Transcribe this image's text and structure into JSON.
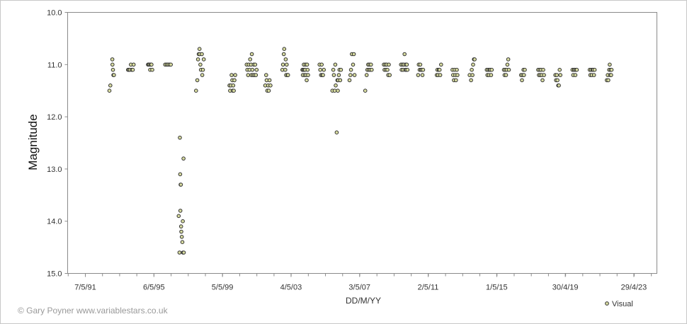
{
  "credit": "© Gary Poyner www.variablestars.co.uk",
  "chart_data": {
    "type": "scatter",
    "title": "",
    "xlabel": "DD/M/YY",
    "ylabel": "Magnitude",
    "y_inverted": true,
    "ylim": [
      10.0,
      15.0
    ],
    "yticks": [
      "10.0",
      "11.0",
      "12.0",
      "13.0",
      "14.0",
      "15.0"
    ],
    "xlim": [
      "1990-04-25",
      "2024-09-01"
    ],
    "xticks": [
      {
        "date": "1991-05-07",
        "label": "7/5/91"
      },
      {
        "date": "1995-05-06",
        "label": "6/5/95"
      },
      {
        "date": "1999-05-05",
        "label": "5/5/99"
      },
      {
        "date": "2003-05-04",
        "label": "4/5/03"
      },
      {
        "date": "2007-05-03",
        "label": "3/5/07"
      },
      {
        "date": "2011-05-02",
        "label": "2/5/11"
      },
      {
        "date": "2015-05-01",
        "label": "1/5/15"
      },
      {
        "date": "2019-04-30",
        "label": "30/4/19"
      },
      {
        "date": "2023-04-29",
        "label": "29/4/23"
      }
    ],
    "grid": false,
    "legend_position": "bottom-right",
    "series": [
      {
        "name": "Visual",
        "color": "#d8dca0",
        "edge_color": "#333333",
        "points": [
          [
            "1992-10-01",
            11.5
          ],
          [
            "1992-10-20",
            11.4
          ],
          [
            "1992-12-01",
            10.9
          ],
          [
            "1992-12-05",
            11.0
          ],
          [
            "1992-12-15",
            11.1
          ],
          [
            "1992-12-25",
            11.2
          ],
          [
            "1993-01-05",
            11.2
          ],
          [
            "1993-11-01",
            11.1
          ],
          [
            "1993-11-20",
            11.1
          ],
          [
            "1993-12-10",
            11.1
          ],
          [
            "1994-01-01",
            11.0
          ],
          [
            "1994-01-20",
            11.1
          ],
          [
            "1994-02-10",
            11.1
          ],
          [
            "1994-03-01",
            11.0
          ],
          [
            "1995-01-01",
            11.0
          ],
          [
            "1995-01-15",
            11.0
          ],
          [
            "1995-02-01",
            11.0
          ],
          [
            "1995-02-15",
            11.1
          ],
          [
            "1995-03-01",
            11.0
          ],
          [
            "1995-03-15",
            11.0
          ],
          [
            "1995-04-01",
            11.1
          ],
          [
            "1996-01-01",
            11.0
          ],
          [
            "1996-02-01",
            11.0
          ],
          [
            "1996-03-01",
            11.0
          ],
          [
            "1996-04-01",
            11.0
          ],
          [
            "1996-05-01",
            11.0
          ],
          [
            "1996-10-15",
            13.9
          ],
          [
            "1996-11-01",
            14.6
          ],
          [
            "1996-11-10",
            12.4
          ],
          [
            "1996-11-15",
            13.1
          ],
          [
            "1996-11-20",
            13.8
          ],
          [
            "1996-11-25",
            13.3
          ],
          [
            "1996-12-01",
            13.3
          ],
          [
            "1996-12-05",
            14.1
          ],
          [
            "1996-12-10",
            14.2
          ],
          [
            "1996-12-20",
            14.3
          ],
          [
            "1997-01-01",
            14.4
          ],
          [
            "1997-01-15",
            14.6
          ],
          [
            "1997-01-25",
            12.8
          ],
          [
            "1997-01-10",
            14.0
          ],
          [
            "1997-02-01",
            14.6
          ],
          [
            "1997-10-20",
            11.5
          ],
          [
            "1997-11-15",
            11.3
          ],
          [
            "1997-12-01",
            10.9
          ],
          [
            "1997-12-15",
            10.8
          ],
          [
            "1998-01-01",
            10.7
          ],
          [
            "1998-01-05",
            10.8
          ],
          [
            "1998-01-20",
            11.0
          ],
          [
            "1998-02-01",
            11.1
          ],
          [
            "1998-02-20",
            10.8
          ],
          [
            "1998-03-01",
            11.2
          ],
          [
            "1998-03-15",
            11.1
          ],
          [
            "1998-04-01",
            10.9
          ],
          [
            "1999-10-01",
            11.4
          ],
          [
            "1999-10-15",
            11.5
          ],
          [
            "1999-11-01",
            11.4
          ],
          [
            "1999-11-15",
            11.2
          ],
          [
            "1999-12-01",
            11.3
          ],
          [
            "1999-12-10",
            11.5
          ],
          [
            "1999-12-20",
            11.4
          ],
          [
            "2000-01-01",
            11.5
          ],
          [
            "2000-01-15",
            11.3
          ],
          [
            "2000-02-01",
            11.2
          ],
          [
            "2000-10-01",
            11.0
          ],
          [
            "2000-10-15",
            11.1
          ],
          [
            "2000-11-01",
            11.2
          ],
          [
            "2000-11-15",
            11.0
          ],
          [
            "2000-12-01",
            11.1
          ],
          [
            "2000-12-15",
            10.9
          ],
          [
            "2001-01-01",
            11.0
          ],
          [
            "2001-01-10",
            11.2
          ],
          [
            "2001-01-20",
            10.8
          ],
          [
            "2001-02-01",
            11.1
          ],
          [
            "2001-02-15",
            11.2
          ],
          [
            "2001-03-01",
            11.0
          ],
          [
            "2001-03-15",
            11.2
          ],
          [
            "2001-04-01",
            11.0
          ],
          [
            "2001-04-15",
            11.2
          ],
          [
            "2001-05-01",
            11.1
          ],
          [
            "2001-11-01",
            11.4
          ],
          [
            "2001-11-20",
            11.2
          ],
          [
            "2001-12-01",
            11.3
          ],
          [
            "2001-12-15",
            11.5
          ],
          [
            "2002-01-01",
            11.4
          ],
          [
            "2002-01-15",
            11.5
          ],
          [
            "2002-02-01",
            11.3
          ],
          [
            "2002-02-20",
            11.4
          ],
          [
            "2002-11-01",
            11.1
          ],
          [
            "2002-11-15",
            11.0
          ],
          [
            "2002-12-01",
            10.8
          ],
          [
            "2002-12-10",
            10.7
          ],
          [
            "2003-01-01",
            11.1
          ],
          [
            "2003-01-10",
            10.9
          ],
          [
            "2003-01-20",
            11.2
          ],
          [
            "2003-02-01",
            11.0
          ],
          [
            "2003-02-20",
            11.2
          ],
          [
            "2003-03-01",
            11.2
          ],
          [
            "2004-01-01",
            11.1
          ],
          [
            "2004-01-10",
            11.2
          ],
          [
            "2004-01-20",
            11.1
          ],
          [
            "2004-02-01",
            11.0
          ],
          [
            "2004-02-10",
            11.1
          ],
          [
            "2004-02-20",
            11.2
          ],
          [
            "2004-03-01",
            11.1
          ],
          [
            "2004-03-10",
            11.0
          ],
          [
            "2004-03-20",
            11.2
          ],
          [
            "2004-04-01",
            11.3
          ],
          [
            "2004-04-10",
            11.0
          ],
          [
            "2004-04-20",
            11.1
          ],
          [
            "2004-05-01",
            11.2
          ],
          [
            "2005-01-01",
            11.0
          ],
          [
            "2005-01-15",
            11.1
          ],
          [
            "2005-02-01",
            11.2
          ],
          [
            "2005-02-15",
            11.0
          ],
          [
            "2005-03-01",
            11.2
          ],
          [
            "2005-03-15",
            11.2
          ],
          [
            "2005-04-01",
            11.1
          ],
          [
            "2005-10-01",
            11.5
          ],
          [
            "2005-10-20",
            11.1
          ],
          [
            "2005-11-01",
            11.2
          ],
          [
            "2005-11-20",
            11.5
          ],
          [
            "2005-12-01",
            11.0
          ],
          [
            "2005-12-10",
            11.4
          ],
          [
            "2006-01-01",
            12.3
          ],
          [
            "2006-01-15",
            11.3
          ],
          [
            "2006-01-25",
            11.5
          ],
          [
            "2006-02-01",
            11.3
          ],
          [
            "2006-02-15",
            11.2
          ],
          [
            "2006-03-01",
            11.1
          ],
          [
            "2006-03-15",
            11.3
          ],
          [
            "2006-04-01",
            11.1
          ],
          [
            "2006-10-01",
            11.3
          ],
          [
            "2006-10-20",
            11.2
          ],
          [
            "2006-11-01",
            11.1
          ],
          [
            "2006-11-20",
            10.8
          ],
          [
            "2006-12-15",
            11.0
          ],
          [
            "2007-01-01",
            10.8
          ],
          [
            "2007-01-15",
            11.2
          ],
          [
            "2007-09-01",
            11.5
          ],
          [
            "2007-10-01",
            11.2
          ],
          [
            "2007-10-15",
            11.1
          ],
          [
            "2007-11-01",
            11.0
          ],
          [
            "2007-11-15",
            11.1
          ],
          [
            "2007-12-01",
            11.0
          ],
          [
            "2007-12-15",
            11.1
          ],
          [
            "2008-01-01",
            11.0
          ],
          [
            "2008-01-15",
            11.1
          ],
          [
            "2008-10-01",
            11.0
          ],
          [
            "2008-10-15",
            11.1
          ],
          [
            "2008-11-01",
            11.0
          ],
          [
            "2008-11-15",
            11.1
          ],
          [
            "2008-12-01",
            11.0
          ],
          [
            "2008-12-15",
            11.1
          ],
          [
            "2009-01-01",
            11.2
          ],
          [
            "2009-01-15",
            11.0
          ],
          [
            "2009-02-01",
            11.2
          ],
          [
            "2009-10-01",
            11.0
          ],
          [
            "2009-10-15",
            11.1
          ],
          [
            "2009-11-01",
            11.0
          ],
          [
            "2009-11-15",
            11.1
          ],
          [
            "2009-12-01",
            11.0
          ],
          [
            "2009-12-15",
            10.8
          ],
          [
            "2010-01-01",
            11.1
          ],
          [
            "2010-01-10",
            11.0
          ],
          [
            "2010-01-20",
            11.1
          ],
          [
            "2010-02-01",
            11.0
          ],
          [
            "2010-02-15",
            11.1
          ],
          [
            "2010-10-01",
            11.2
          ],
          [
            "2010-10-15",
            11.0
          ],
          [
            "2010-11-01",
            11.1
          ],
          [
            "2010-11-15",
            11.0
          ],
          [
            "2010-12-01",
            11.1
          ],
          [
            "2010-12-15",
            11.1
          ],
          [
            "2011-01-01",
            11.2
          ],
          [
            "2011-01-15",
            11.1
          ],
          [
            "2011-11-01",
            11.2
          ],
          [
            "2011-11-15",
            11.1
          ],
          [
            "2011-12-01",
            11.2
          ],
          [
            "2011-12-15",
            11.1
          ],
          [
            "2012-01-01",
            11.1
          ],
          [
            "2012-01-15",
            11.2
          ],
          [
            "2012-02-01",
            11.0
          ],
          [
            "2012-10-01",
            11.1
          ],
          [
            "2012-10-15",
            11.2
          ],
          [
            "2012-11-01",
            11.3
          ],
          [
            "2012-11-15",
            11.1
          ],
          [
            "2012-12-01",
            11.2
          ],
          [
            "2012-12-15",
            11.3
          ],
          [
            "2013-01-01",
            11.1
          ],
          [
            "2013-01-15",
            11.2
          ],
          [
            "2013-10-01",
            11.2
          ],
          [
            "2013-11-01",
            11.3
          ],
          [
            "2013-11-15",
            11.1
          ],
          [
            "2013-12-01",
            11.2
          ],
          [
            "2013-12-15",
            11.0
          ],
          [
            "2014-01-01",
            10.9
          ],
          [
            "2014-01-15",
            10.9
          ],
          [
            "2014-10-01",
            11.1
          ],
          [
            "2014-10-15",
            11.2
          ],
          [
            "2014-11-01",
            11.1
          ],
          [
            "2014-11-15",
            11.2
          ],
          [
            "2014-12-01",
            11.1
          ],
          [
            "2014-12-15",
            11.1
          ],
          [
            "2015-01-01",
            11.2
          ],
          [
            "2015-01-15",
            11.1
          ],
          [
            "2015-10-01",
            11.1
          ],
          [
            "2015-10-15",
            11.2
          ],
          [
            "2015-11-01",
            11.1
          ],
          [
            "2015-11-15",
            11.2
          ],
          [
            "2015-12-01",
            11.1
          ],
          [
            "2015-12-15",
            11.0
          ],
          [
            "2016-01-01",
            10.9
          ],
          [
            "2016-01-15",
            11.1
          ],
          [
            "2016-10-01",
            11.2
          ],
          [
            "2016-10-20",
            11.3
          ],
          [
            "2016-11-01",
            11.2
          ],
          [
            "2016-11-20",
            11.1
          ],
          [
            "2016-12-01",
            11.2
          ],
          [
            "2016-12-20",
            11.1
          ],
          [
            "2017-10-01",
            11.1
          ],
          [
            "2017-10-15",
            11.2
          ],
          [
            "2017-11-01",
            11.1
          ],
          [
            "2017-11-15",
            11.2
          ],
          [
            "2017-12-01",
            11.1
          ],
          [
            "2017-12-15",
            11.2
          ],
          [
            "2018-01-01",
            11.3
          ],
          [
            "2018-01-15",
            11.1
          ],
          [
            "2018-02-01",
            11.2
          ],
          [
            "2018-10-01",
            11.2
          ],
          [
            "2018-10-15",
            11.3
          ],
          [
            "2018-11-01",
            11.2
          ],
          [
            "2018-11-15",
            11.3
          ],
          [
            "2018-12-01",
            11.4
          ],
          [
            "2018-12-15",
            11.4
          ],
          [
            "2019-01-01",
            11.1
          ],
          [
            "2019-01-15",
            11.2
          ],
          [
            "2019-10-01",
            11.1
          ],
          [
            "2019-10-15",
            11.2
          ],
          [
            "2019-11-01",
            11.1
          ],
          [
            "2019-11-15",
            11.1
          ],
          [
            "2019-12-01",
            11.2
          ],
          [
            "2019-12-15",
            11.1
          ],
          [
            "2020-01-01",
            11.1
          ],
          [
            "2020-10-01",
            11.1
          ],
          [
            "2020-10-15",
            11.2
          ],
          [
            "2020-11-01",
            11.1
          ],
          [
            "2020-11-15",
            11.2
          ],
          [
            "2020-12-01",
            11.1
          ],
          [
            "2020-12-15",
            11.1
          ],
          [
            "2021-01-01",
            11.2
          ],
          [
            "2021-01-15",
            11.1
          ],
          [
            "2021-10-01",
            11.3
          ],
          [
            "2021-10-20",
            11.2
          ],
          [
            "2021-11-01",
            11.3
          ],
          [
            "2021-11-20",
            11.1
          ],
          [
            "2021-12-01",
            11.0
          ],
          [
            "2021-12-10",
            11.2
          ],
          [
            "2021-12-20",
            11.1
          ],
          [
            "2022-01-01",
            11.2
          ],
          [
            "2022-01-10",
            11.1
          ]
        ]
      }
    ]
  }
}
